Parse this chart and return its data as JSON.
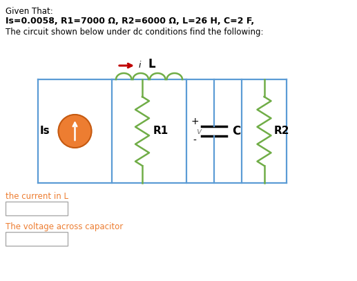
{
  "title_line1": "Given That:",
  "title_line2": "Is=0.0058, R1=7000 Ω, R2=6000 Ω, L=26 H, C=2 F,",
  "title_line3": "The circuit shown below under dc conditions find the following:",
  "label_L": "L",
  "label_i": "i",
  "label_R1": "R1",
  "label_R2": "R2",
  "label_C": "C",
  "label_v": "v",
  "label_Is": "Is",
  "label_plus": "+",
  "label_minus": "-",
  "question1": "the current in L",
  "question2": "The voltage across capacitor",
  "circuit_color": "#5b9bd5",
  "resistor_color": "#70ad47",
  "source_color": "#ed7d31",
  "source_border": "#c55a11",
  "arrow_color": "#c00000",
  "text_q_color": "#ed7d31",
  "bg_color": "#ffffff",
  "fig_w": 5.17,
  "fig_h": 4.07,
  "dpi": 100
}
